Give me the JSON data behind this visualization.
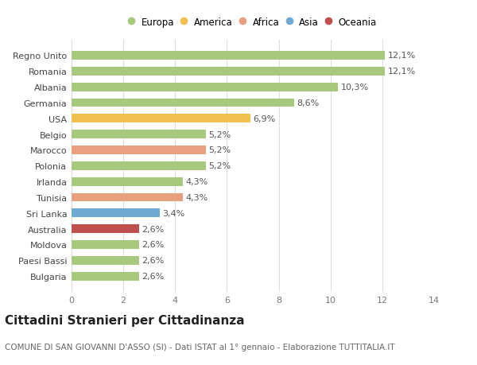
{
  "categories": [
    "Bulgaria",
    "Paesi Bassi",
    "Moldova",
    "Australia",
    "Sri Lanka",
    "Tunisia",
    "Irlanda",
    "Polonia",
    "Marocco",
    "Belgio",
    "USA",
    "Germania",
    "Albania",
    "Romania",
    "Regno Unito"
  ],
  "values": [
    2.6,
    2.6,
    2.6,
    2.6,
    3.4,
    4.3,
    4.3,
    5.2,
    5.2,
    5.2,
    6.9,
    8.6,
    10.3,
    12.1,
    12.1
  ],
  "labels": [
    "2,6%",
    "2,6%",
    "2,6%",
    "2,6%",
    "3,4%",
    "4,3%",
    "4,3%",
    "5,2%",
    "5,2%",
    "5,2%",
    "6,9%",
    "8,6%",
    "10,3%",
    "12,1%",
    "12,1%"
  ],
  "colors": [
    "#a8c880",
    "#a8c880",
    "#a8c880",
    "#c0504d",
    "#6fa8d0",
    "#e8a080",
    "#a8c880",
    "#a8c880",
    "#e8a080",
    "#a8c880",
    "#f0c050",
    "#a8c880",
    "#a8c880",
    "#a8c880",
    "#a8c880"
  ],
  "legend_labels": [
    "Europa",
    "America",
    "Africa",
    "Asia",
    "Oceania"
  ],
  "legend_colors": [
    "#a8c880",
    "#f0c050",
    "#e8a080",
    "#6fa8d0",
    "#c0504d"
  ],
  "title": "Cittadini Stranieri per Cittadinanza",
  "subtitle": "COMUNE DI SAN GIOVANNI D'ASSO (SI) - Dati ISTAT al 1° gennaio - Elaborazione TUTTITALIA.IT",
  "xlim": [
    0,
    14
  ],
  "xticks": [
    0,
    2,
    4,
    6,
    8,
    10,
    12,
    14
  ],
  "bg_color": "#ffffff",
  "grid_color": "#dddddd",
  "bar_height": 0.55,
  "label_fontsize": 8,
  "tick_fontsize": 8,
  "ytick_fontsize": 8,
  "title_fontsize": 11,
  "subtitle_fontsize": 7.5
}
